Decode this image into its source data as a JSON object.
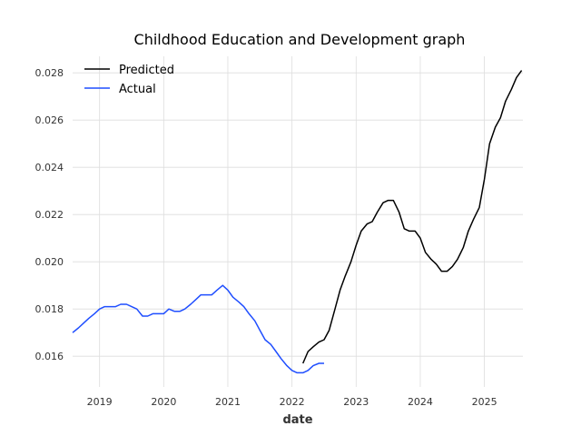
{
  "chart_data": {
    "type": "line",
    "title": "Childhood Education and Development graph",
    "xlabel": "date",
    "ylabel": "",
    "xlim": [
      2018.58,
      2025.6
    ],
    "ylim": [
      0.0147,
      0.0287
    ],
    "x_ticks": [
      2019,
      2020,
      2021,
      2022,
      2023,
      2024,
      2025
    ],
    "x_tick_labels": [
      "2019",
      "2020",
      "2021",
      "2022",
      "2023",
      "2024",
      "2025"
    ],
    "y_ticks": [
      0.016,
      0.018,
      0.02,
      0.022,
      0.024,
      0.026,
      0.028
    ],
    "y_tick_labels": [
      "0.016",
      "0.018",
      "0.020",
      "0.022",
      "0.024",
      "0.026",
      "0.028"
    ],
    "grid": true,
    "legend_position": "top-left",
    "series": [
      {
        "name": "Predicted",
        "color": "#000000",
        "x": [
          2022.17,
          2022.25,
          2022.33,
          2022.42,
          2022.5,
          2022.58,
          2022.67,
          2022.75,
          2022.83,
          2022.92,
          2023.0,
          2023.08,
          2023.17,
          2023.25,
          2023.33,
          2023.42,
          2023.5,
          2023.58,
          2023.67,
          2023.75,
          2023.83,
          2023.92,
          2024.0,
          2024.08,
          2024.17,
          2024.25,
          2024.33,
          2024.42,
          2024.5,
          2024.58,
          2024.67,
          2024.75,
          2024.83,
          2024.92,
          2025.0,
          2025.08,
          2025.17,
          2025.25,
          2025.33,
          2025.42,
          2025.5,
          2025.58
        ],
        "values": [
          0.0157,
          0.0162,
          0.0164,
          0.0166,
          0.0167,
          0.0171,
          0.018,
          0.0188,
          0.0194,
          0.02,
          0.0207,
          0.0213,
          0.0216,
          0.0217,
          0.0221,
          0.0225,
          0.0226,
          0.0226,
          0.0221,
          0.0214,
          0.0213,
          0.0213,
          0.021,
          0.0204,
          0.0201,
          0.0199,
          0.0196,
          0.0196,
          0.0198,
          0.0201,
          0.0206,
          0.0213,
          0.0218,
          0.0223,
          0.0235,
          0.025,
          0.0257,
          0.0261,
          0.0268,
          0.0273,
          0.0278,
          0.0281
        ]
      },
      {
        "name": "Actual",
        "color": "#1f4eff",
        "x": [
          2018.58,
          2018.67,
          2018.75,
          2018.83,
          2018.92,
          2019.0,
          2019.08,
          2019.17,
          2019.25,
          2019.33,
          2019.42,
          2019.5,
          2019.58,
          2019.67,
          2019.75,
          2019.83,
          2019.92,
          2020.0,
          2020.08,
          2020.17,
          2020.25,
          2020.33,
          2020.42,
          2020.5,
          2020.58,
          2020.67,
          2020.75,
          2020.83,
          2020.92,
          2021.0,
          2021.08,
          2021.17,
          2021.25,
          2021.33,
          2021.42,
          2021.5,
          2021.58,
          2021.67,
          2021.75,
          2021.83,
          2021.92,
          2022.0,
          2022.08,
          2022.17,
          2022.25,
          2022.33,
          2022.42,
          2022.5
        ],
        "values": [
          0.017,
          0.0172,
          0.0174,
          0.0176,
          0.0178,
          0.018,
          0.0181,
          0.0181,
          0.0181,
          0.0182,
          0.0182,
          0.0181,
          0.018,
          0.0177,
          0.0177,
          0.0178,
          0.0178,
          0.0178,
          0.018,
          0.0179,
          0.0179,
          0.018,
          0.0182,
          0.0184,
          0.0186,
          0.0186,
          0.0186,
          0.0188,
          0.019,
          0.0188,
          0.0185,
          0.0183,
          0.0181,
          0.0178,
          0.0175,
          0.0171,
          0.0167,
          0.0165,
          0.0162,
          0.0159,
          0.0156,
          0.0154,
          0.0153,
          0.0153,
          0.0154,
          0.0156,
          0.0157,
          0.0157
        ]
      }
    ]
  }
}
